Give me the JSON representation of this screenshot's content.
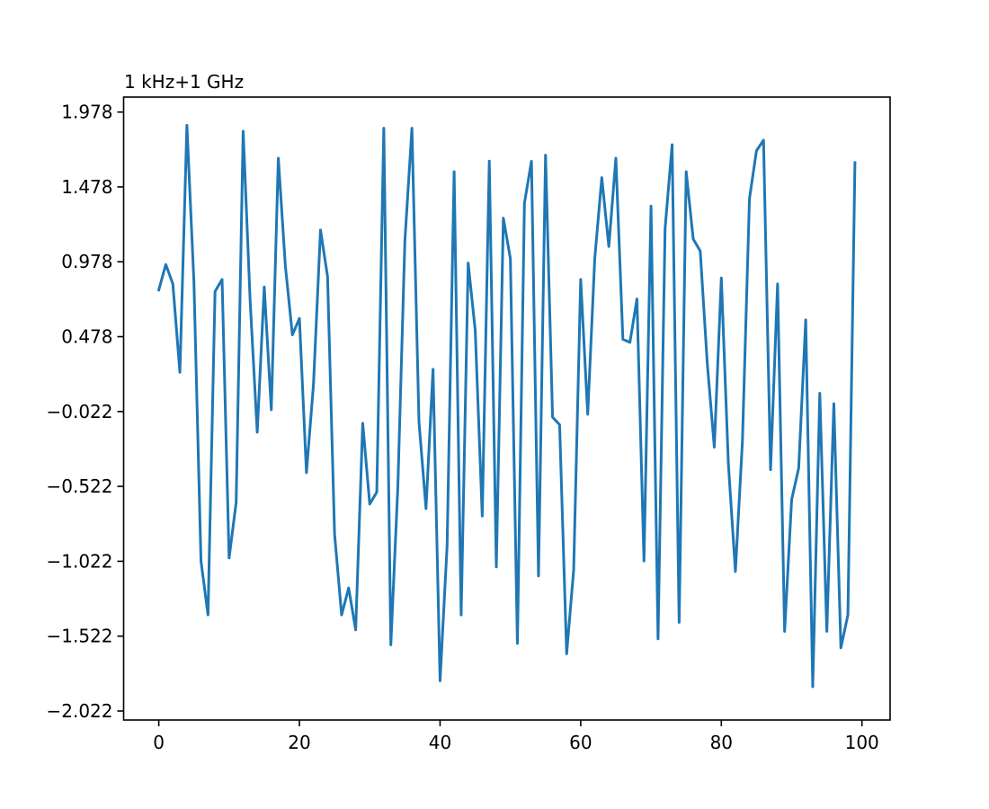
{
  "chart_data": {
    "type": "line",
    "offset_text": "1 kHz+1 GHz",
    "xlim": [
      -5,
      104
    ],
    "ylim": [
      -2.082,
      2.078
    ],
    "xticks": [
      0,
      20,
      40,
      60,
      80,
      100
    ],
    "xtick_labels": [
      "0",
      "20",
      "40",
      "60",
      "80",
      "100"
    ],
    "yticks": [
      -2.022,
      -1.522,
      -1.022,
      -0.522,
      -0.022,
      0.478,
      0.978,
      1.478,
      1.978
    ],
    "ytick_labels": [
      "−2.022",
      "−1.522",
      "−1.022",
      "−0.522",
      "−0.022",
      "0.478",
      "0.978",
      "1.478",
      "1.978"
    ],
    "grid": false,
    "series": [
      {
        "color": "#1f77b4",
        "x": [
          0,
          1,
          2,
          3,
          4,
          5,
          6,
          7,
          8,
          9,
          10,
          11,
          12,
          13,
          14,
          15,
          16,
          17,
          18,
          19,
          20,
          21,
          22,
          23,
          24,
          25,
          26,
          27,
          28,
          29,
          30,
          31,
          32,
          33,
          34,
          35,
          36,
          37,
          38,
          39,
          40,
          41,
          42,
          43,
          44,
          45,
          46,
          47,
          48,
          49,
          50,
          51,
          52,
          53,
          54,
          55,
          56,
          57,
          58,
          59,
          60,
          61,
          62,
          63,
          64,
          65,
          66,
          67,
          68,
          69,
          70,
          71,
          72,
          73,
          74,
          75,
          76,
          77,
          78,
          79,
          80,
          81,
          82,
          83,
          84,
          85,
          86,
          87,
          88,
          89,
          90,
          91,
          92,
          93,
          94,
          95,
          96,
          97,
          98,
          99
        ],
        "values": [
          0.79,
          0.96,
          0.83,
          0.24,
          1.89,
          0.84,
          -1.02,
          -1.38,
          0.78,
          0.86,
          -1.0,
          -0.63,
          1.85,
          0.71,
          -0.16,
          0.81,
          -0.01,
          1.67,
          0.95,
          0.49,
          0.6,
          -0.43,
          0.16,
          1.19,
          0.88,
          -0.84,
          -1.38,
          -1.2,
          -1.48,
          -0.1,
          -0.64,
          -0.56,
          1.87,
          -1.58,
          -0.52,
          1.12,
          1.87,
          -0.09,
          -0.67,
          0.26,
          -1.82,
          -0.92,
          1.58,
          -1.38,
          0.97,
          0.52,
          -0.72,
          1.65,
          -1.06,
          1.27,
          1.0,
          -1.57,
          1.37,
          1.65,
          -1.12,
          1.69,
          -0.06,
          -0.11,
          -1.64,
          -1.08,
          0.86,
          -0.04,
          1.0,
          1.54,
          1.08,
          1.67,
          0.46,
          0.44,
          0.73,
          -1.02,
          1.35,
          -1.54,
          1.2,
          1.76,
          -1.43,
          1.58,
          1.13,
          1.05,
          0.3,
          -0.26,
          0.87,
          -0.37,
          -1.09,
          -0.22,
          1.4,
          1.72,
          1.79,
          -0.41,
          0.83,
          -1.49,
          -0.61,
          -0.4,
          0.59,
          -1.86,
          0.1,
          -1.49,
          0.03,
          -1.6,
          -1.38,
          1.64
        ]
      }
    ]
  }
}
